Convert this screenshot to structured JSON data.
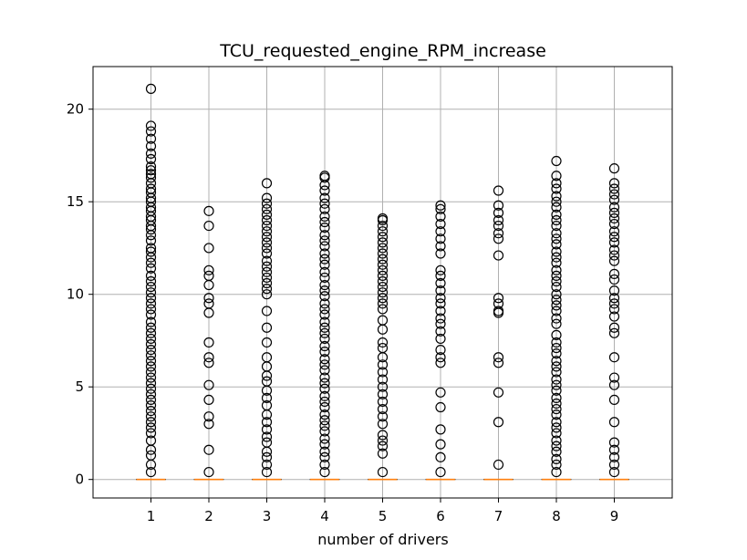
{
  "chart_data": {
    "type": "box",
    "title": "TCU_requested_engine_RPM_increase",
    "xlabel": "number of drivers",
    "ylabel": "",
    "categories": [
      "1",
      "2",
      "3",
      "4",
      "5",
      "6",
      "7",
      "8",
      "9"
    ],
    "ylim": [
      -1.0,
      22.3
    ],
    "yticks": [
      0,
      5,
      10,
      15,
      20
    ],
    "grid": true,
    "colors": {
      "median": "#ff7f0e",
      "flier": "#000000",
      "grid": "#b0b0b0",
      "axis": "#000000"
    },
    "boxes": [
      {
        "category": "1",
        "q1": 0,
        "median": 0,
        "q3": 0,
        "whisker_low": 0,
        "whisker_high": 0,
        "fliers": [
          21.1,
          19.1,
          18.8,
          18.4,
          18.0,
          17.6,
          17.3,
          16.9,
          16.7,
          16.5,
          16.3,
          16.0,
          15.7,
          15.5,
          15.2,
          15.0,
          14.7,
          14.5,
          14.2,
          14.0,
          13.7,
          13.5,
          13.2,
          12.9,
          12.5,
          12.3,
          12.0,
          11.7,
          11.4,
          11.0,
          10.7,
          10.4,
          10.1,
          9.8,
          9.5,
          9.2,
          8.9,
          8.5,
          8.2,
          7.9,
          7.6,
          7.3,
          7.0,
          6.7,
          6.4,
          6.1,
          5.8,
          5.5,
          5.2,
          4.9,
          4.6,
          4.3,
          4.0,
          3.7,
          3.4,
          3.1,
          2.8,
          2.5,
          2.1,
          1.6,
          1.3,
          0.8,
          0.4
        ]
      },
      {
        "category": "2",
        "q1": 0,
        "median": 0,
        "q3": 0,
        "whisker_low": 0,
        "whisker_high": 0,
        "fliers": [
          14.5,
          13.7,
          12.5,
          11.3,
          11.0,
          10.5,
          9.8,
          9.5,
          9.0,
          7.4,
          6.6,
          6.3,
          5.1,
          4.3,
          3.4,
          3.0,
          1.6,
          0.4
        ]
      },
      {
        "category": "3",
        "q1": 0,
        "median": 0,
        "q3": 0,
        "whisker_low": 0,
        "whisker_high": 0,
        "fliers": [
          16.0,
          15.2,
          14.9,
          14.6,
          14.3,
          14.0,
          13.7,
          13.4,
          13.1,
          12.8,
          12.5,
          12.2,
          11.8,
          11.5,
          11.2,
          10.9,
          10.6,
          10.3,
          10.0,
          9.1,
          8.2,
          7.4,
          6.6,
          6.1,
          5.6,
          5.3,
          4.8,
          4.4,
          4.0,
          3.5,
          3.1,
          2.7,
          2.3,
          2.0,
          1.5,
          1.2,
          0.8,
          0.4
        ]
      },
      {
        "category": "4",
        "q1": 0,
        "median": 0,
        "q3": 0,
        "whisker_low": 0,
        "whisker_high": 0,
        "fliers": [
          16.4,
          16.3,
          15.9,
          15.6,
          15.2,
          14.9,
          14.6,
          14.2,
          13.9,
          13.6,
          13.2,
          12.9,
          12.6,
          12.2,
          11.9,
          11.6,
          11.2,
          10.9,
          10.5,
          10.2,
          9.9,
          9.5,
          9.2,
          8.9,
          8.5,
          8.2,
          7.9,
          7.6,
          7.2,
          6.9,
          6.5,
          6.2,
          5.9,
          5.5,
          5.2,
          4.9,
          4.5,
          4.2,
          3.9,
          3.5,
          3.2,
          2.9,
          2.6,
          2.2,
          1.9,
          1.5,
          1.2,
          0.8,
          0.4
        ]
      },
      {
        "category": "5",
        "q1": 0,
        "median": 0,
        "q3": 0,
        "whisker_low": 0,
        "whisker_high": 0,
        "fliers": [
          14.1,
          14.0,
          13.7,
          13.4,
          13.1,
          12.8,
          12.5,
          12.2,
          11.9,
          11.6,
          11.3,
          11.0,
          10.7,
          10.4,
          10.1,
          9.8,
          9.5,
          9.2,
          8.6,
          8.1,
          7.4,
          7.1,
          6.6,
          6.2,
          5.8,
          5.4,
          5.0,
          4.6,
          4.2,
          3.8,
          3.4,
          3.0,
          2.4,
          2.1,
          1.8,
          1.4,
          0.4
        ]
      },
      {
        "category": "6",
        "q1": 0,
        "median": 0,
        "q3": 0,
        "whisker_low": 0,
        "whisker_high": 0,
        "fliers": [
          14.8,
          14.6,
          14.2,
          13.8,
          13.4,
          13.0,
          12.6,
          12.2,
          11.3,
          11.0,
          10.6,
          10.2,
          9.8,
          9.5,
          9.1,
          8.7,
          8.4,
          8.0,
          7.6,
          7.0,
          6.6,
          6.3,
          4.7,
          3.9,
          2.7,
          1.9,
          1.2,
          0.4
        ]
      },
      {
        "category": "7",
        "q1": 0,
        "median": 0,
        "q3": 0,
        "whisker_low": 0,
        "whisker_high": 0,
        "fliers": [
          15.6,
          14.8,
          14.4,
          14.0,
          13.7,
          13.3,
          13.0,
          12.1,
          9.8,
          9.5,
          9.1,
          9.0,
          6.6,
          6.3,
          4.7,
          3.1,
          0.8
        ]
      },
      {
        "category": "8",
        "q1": 0,
        "median": 0,
        "q3": 0,
        "whisker_low": 0,
        "whisker_high": 0,
        "fliers": [
          17.2,
          16.4,
          16.0,
          15.7,
          15.3,
          15.0,
          14.7,
          14.3,
          14.0,
          13.7,
          13.3,
          13.0,
          12.7,
          12.3,
          12.0,
          11.7,
          11.3,
          11.0,
          10.7,
          10.4,
          10.0,
          9.7,
          9.4,
          9.1,
          8.7,
          8.4,
          7.8,
          7.4,
          7.1,
          6.8,
          6.4,
          6.1,
          5.8,
          5.4,
          5.1,
          4.8,
          4.4,
          4.1,
          3.8,
          3.5,
          3.1,
          2.8,
          2.5,
          2.1,
          1.8,
          1.5,
          1.1,
          0.8,
          0.4
        ]
      },
      {
        "category": "9",
        "q1": 0,
        "median": 0,
        "q3": 0,
        "whisker_low": 0,
        "whisker_high": 0,
        "fliers": [
          16.8,
          16.0,
          15.7,
          15.4,
          15.1,
          14.7,
          14.4,
          14.1,
          13.8,
          13.4,
          13.1,
          12.8,
          12.4,
          12.1,
          11.8,
          11.1,
          10.8,
          10.2,
          9.8,
          9.5,
          9.2,
          8.8,
          8.2,
          7.9,
          6.6,
          5.5,
          5.1,
          4.3,
          3.1,
          2.0,
          1.6,
          1.2,
          0.8,
          0.4
        ]
      }
    ]
  }
}
